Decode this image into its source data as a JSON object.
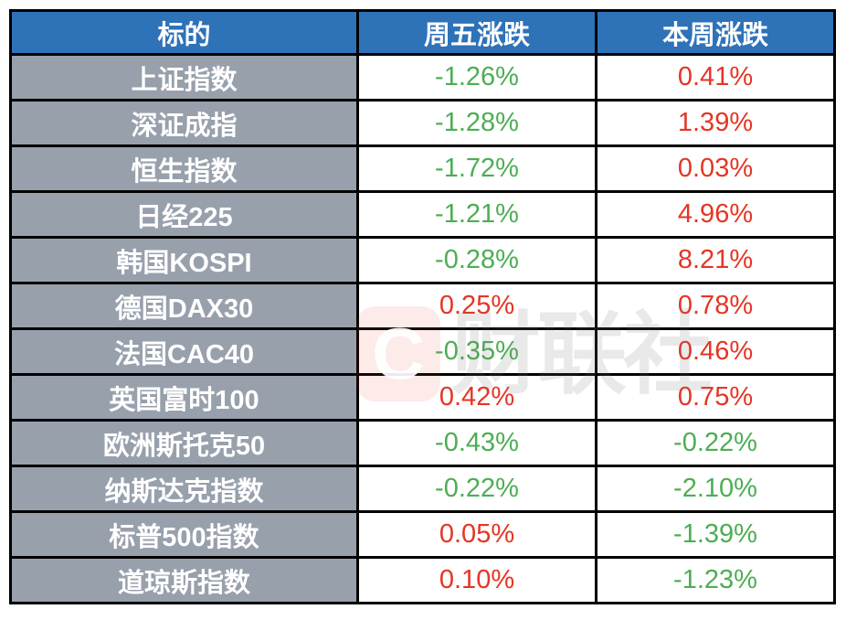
{
  "table": {
    "headers": {
      "target": "标的",
      "friday": "周五涨跌",
      "week": "本周涨跌"
    },
    "rows": [
      {
        "name": "上证指数",
        "friday": "-1.26%",
        "friday_color": "green",
        "week": "0.41%",
        "week_color": "red"
      },
      {
        "name": "深证成指",
        "friday": "-1.28%",
        "friday_color": "green",
        "week": "1.39%",
        "week_color": "red"
      },
      {
        "name": "恒生指数",
        "friday": "-1.72%",
        "friday_color": "green",
        "week": "0.03%",
        "week_color": "red"
      },
      {
        "name": "日经225",
        "friday": "-1.21%",
        "friday_color": "green",
        "week": "4.96%",
        "week_color": "red"
      },
      {
        "name": "韩国KOSPI",
        "friday": "-0.28%",
        "friday_color": "green",
        "week": "8.21%",
        "week_color": "red"
      },
      {
        "name": "德国DAX30",
        "friday": "0.25%",
        "friday_color": "red",
        "week": "0.78%",
        "week_color": "red"
      },
      {
        "name": "法国CAC40",
        "friday": "-0.35%",
        "friday_color": "green",
        "week": "0.46%",
        "week_color": "red"
      },
      {
        "name": "英国富时100",
        "friday": "0.42%",
        "friday_color": "red",
        "week": "0.75%",
        "week_color": "red"
      },
      {
        "name": "欧洲斯托克50",
        "friday": "-0.43%",
        "friday_color": "green",
        "week": "-0.22%",
        "week_color": "green"
      },
      {
        "name": "纳斯达克指数",
        "friday": "-0.22%",
        "friday_color": "green",
        "week": "-2.10%",
        "week_color": "green"
      },
      {
        "name": "标普500指数",
        "friday": "0.05%",
        "friday_color": "red",
        "week": "-1.39%",
        "week_color": "green"
      },
      {
        "name": "道琼斯指数",
        "friday": "0.10%",
        "friday_color": "red",
        "week": "-1.23%",
        "week_color": "green"
      }
    ]
  },
  "watermark": {
    "logo_letter": "C",
    "text": "财联社"
  },
  "colors": {
    "header_bg": "#2E72B8",
    "name_cell_bg": "#98A0AC",
    "gain_red": "#E53524",
    "loss_green": "#4CAE53",
    "border": "#000000"
  },
  "chart_data": {
    "type": "table",
    "title": "",
    "columns": [
      "标的",
      "周五涨跌",
      "本周涨跌"
    ],
    "rows": [
      [
        "上证指数",
        "-1.26%",
        "0.41%"
      ],
      [
        "深证成指",
        "-1.28%",
        "1.39%"
      ],
      [
        "恒生指数",
        "-1.72%",
        "0.03%"
      ],
      [
        "日经225",
        "-1.21%",
        "4.96%"
      ],
      [
        "韩国KOSPI",
        "-0.28%",
        "8.21%"
      ],
      [
        "德国DAX30",
        "0.25%",
        "0.78%"
      ],
      [
        "法国CAC40",
        "-0.35%",
        "0.46%"
      ],
      [
        "英国富时100",
        "0.42%",
        "0.75%"
      ],
      [
        "欧洲斯托克50",
        "-0.43%",
        "-0.22%"
      ],
      [
        "纳斯达克指数",
        "-0.22%",
        "-2.10%"
      ],
      [
        "标普500指数",
        "0.05%",
        "-1.39%"
      ],
      [
        "道琼斯指数",
        "0.10%",
        "-1.23%"
      ]
    ],
    "friday_values_pct": [
      -1.26,
      -1.28,
      -1.72,
      -1.21,
      -0.28,
      0.25,
      -0.35,
      0.42,
      -0.43,
      -0.22,
      0.05,
      0.1
    ],
    "week_values_pct": [
      0.41,
      1.39,
      0.03,
      4.96,
      8.21,
      0.78,
      0.46,
      0.75,
      -0.22,
      -2.1,
      -1.39,
      -1.23
    ],
    "color_convention": "red=positive/gain, green=negative/loss"
  }
}
